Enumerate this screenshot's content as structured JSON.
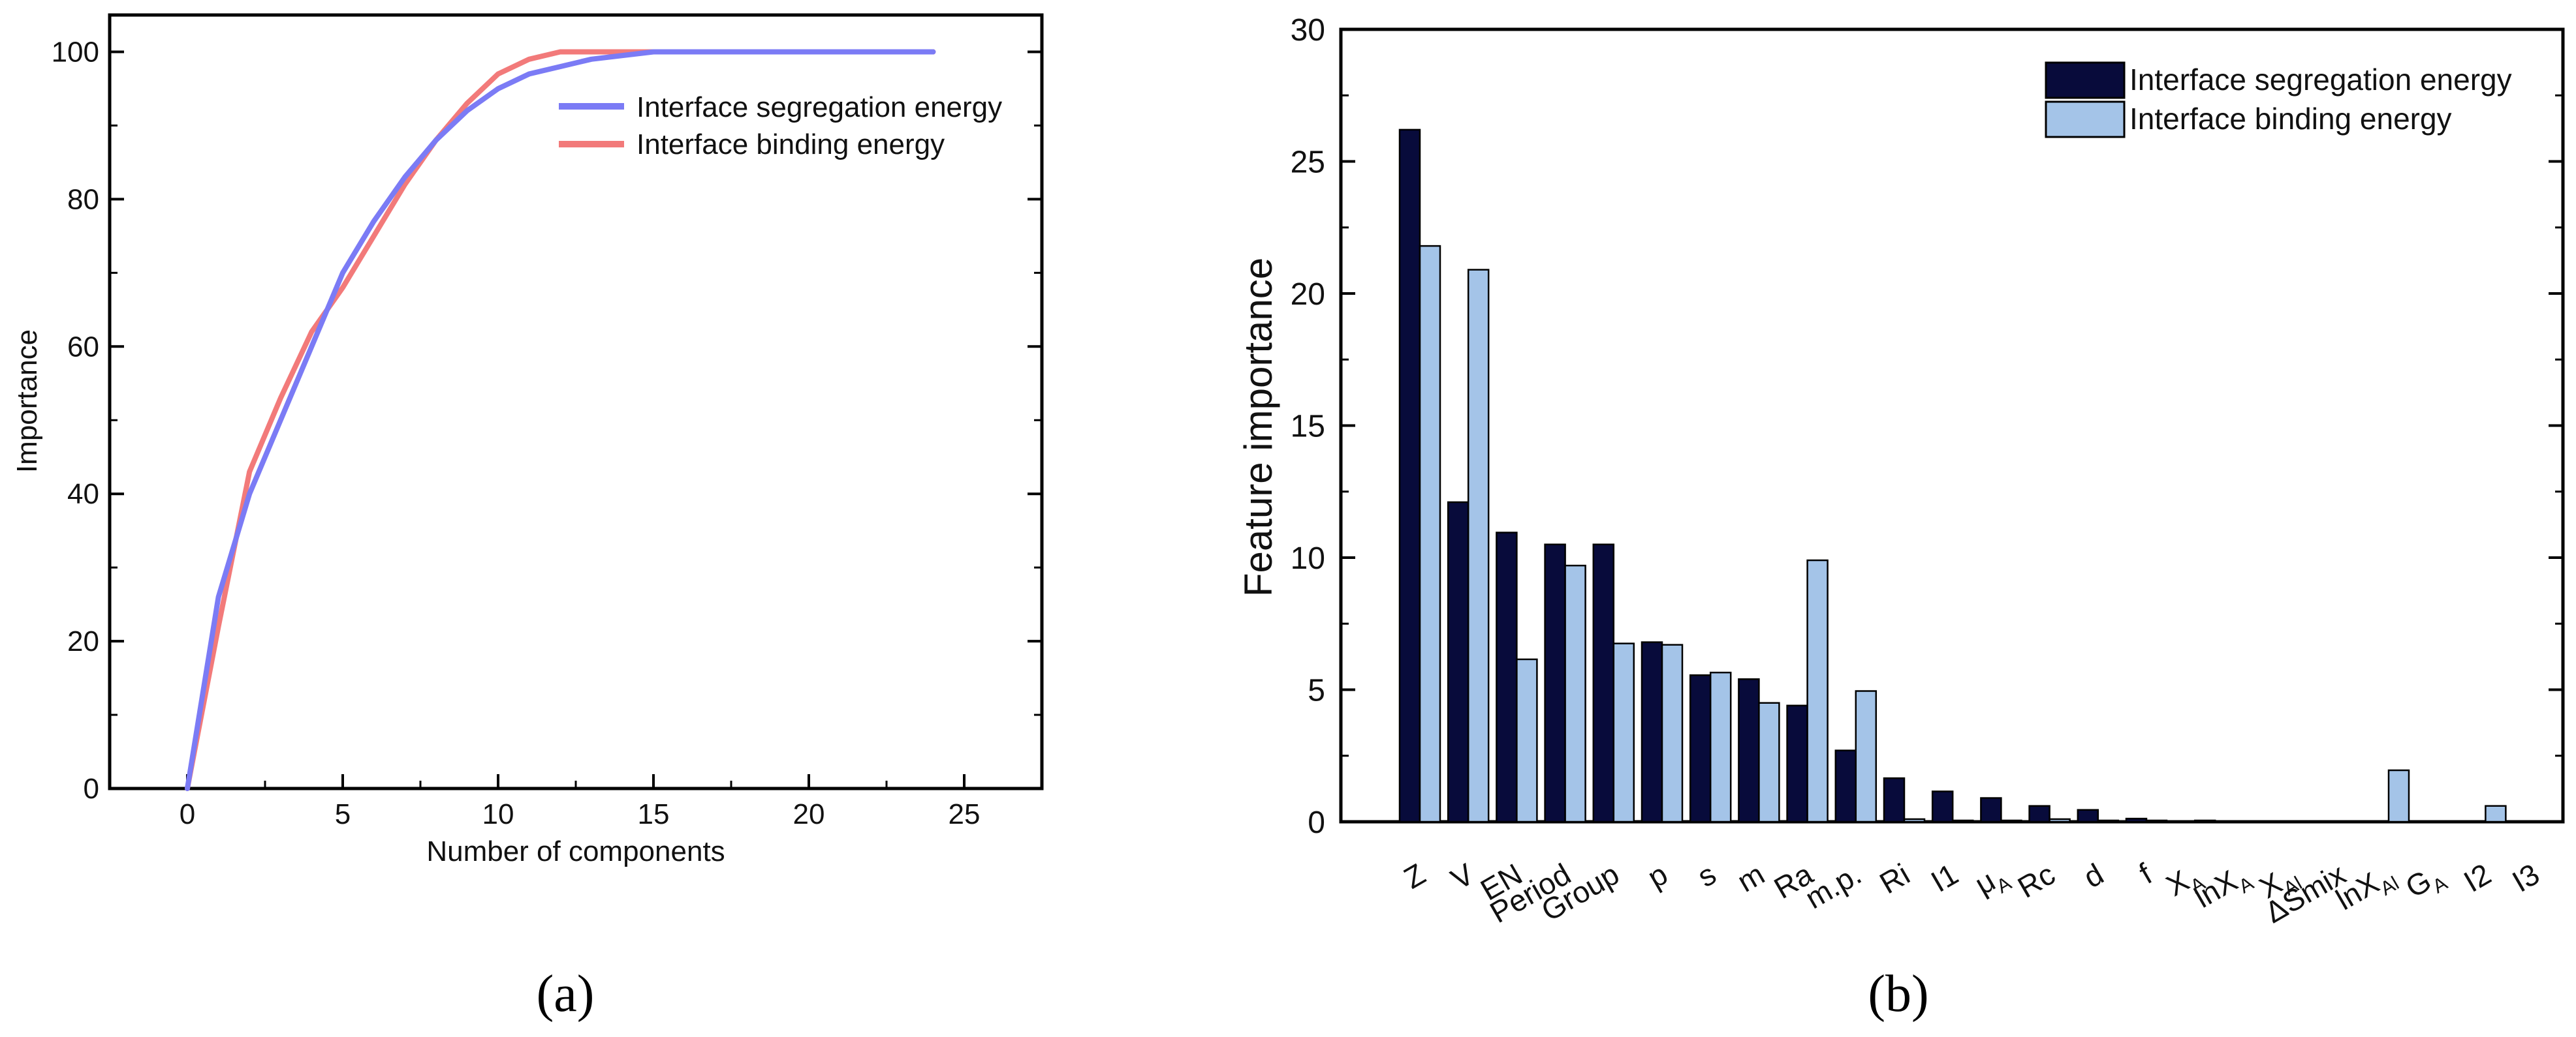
{
  "chart_data": [
    {
      "type": "line",
      "xlabel": "Number of components",
      "ylabel": "Importance",
      "xlim": [
        -2.5,
        27.5
      ],
      "ylim": [
        0,
        105
      ],
      "xticks": [
        0,
        5,
        10,
        15,
        20,
        25
      ],
      "yticks": [
        0,
        20,
        40,
        60,
        80,
        100
      ],
      "caption": "(a)",
      "legend_position": "top-right",
      "series": [
        {
          "name": "Interface segregation energy",
          "color": "#7b7bf5",
          "x": [
            0,
            1,
            2,
            3,
            4,
            5,
            6,
            7,
            8,
            9,
            10,
            11,
            12,
            13,
            14,
            15,
            16,
            17,
            18,
            19,
            20,
            21,
            22,
            23,
            24
          ],
          "y": [
            0,
            26,
            40,
            50,
            60,
            70,
            77,
            83,
            88,
            92,
            95,
            97,
            98,
            99,
            99.5,
            100,
            100,
            100,
            100,
            100,
            100,
            100,
            100,
            100,
            100
          ]
        },
        {
          "name": "Interface binding energy",
          "color": "#f27a7a",
          "x": [
            0,
            1,
            2,
            3,
            4,
            5,
            6,
            7,
            8,
            9,
            10,
            11,
            12,
            13,
            14,
            15,
            16,
            17,
            18,
            19,
            20,
            21,
            22,
            23,
            24
          ],
          "y": [
            0,
            22,
            43,
            53,
            62,
            68,
            75,
            82,
            88,
            93,
            97,
            99,
            100,
            100,
            100,
            100,
            100,
            100,
            100,
            100,
            100,
            100,
            100,
            100,
            100
          ]
        }
      ]
    },
    {
      "type": "bar",
      "xlabel": "",
      "ylabel": "Feature importance",
      "ylim": [
        0,
        30
      ],
      "yticks": [
        0,
        5,
        10,
        15,
        20,
        25,
        30
      ],
      "caption": "(b)",
      "legend_position": "top-right",
      "categories": [
        "Z",
        "V",
        "EN",
        "Period",
        "Group",
        "p",
        "s",
        "m",
        "Ra",
        "m.p.",
        "Ri",
        "I1",
        "μ_A",
        "Rc",
        "d",
        "f",
        "X_A",
        "lnX_A",
        "X_Al",
        "ΔSmix",
        "lnX_Al",
        "G_A",
        "I2",
        "I3"
      ],
      "series": [
        {
          "name": "Interface segregation energy",
          "color": "#080b3b",
          "values": [
            26.2,
            12.1,
            10.95,
            10.5,
            10.5,
            6.8,
            5.55,
            5.4,
            4.4,
            2.7,
            1.65,
            1.15,
            0.9,
            0.6,
            0.45,
            0.12,
            0,
            0,
            0,
            0,
            0,
            0,
            0,
            0
          ]
        },
        {
          "name": "Interface binding energy",
          "color": "#a4c4e8",
          "values": [
            21.8,
            20.9,
            6.15,
            9.7,
            6.75,
            6.7,
            5.65,
            4.5,
            9.9,
            4.95,
            0.1,
            0.05,
            0.05,
            0.1,
            0.05,
            0.05,
            0.05,
            0,
            0,
            0,
            1.95,
            0,
            0.6,
            0
          ]
        }
      ]
    }
  ]
}
